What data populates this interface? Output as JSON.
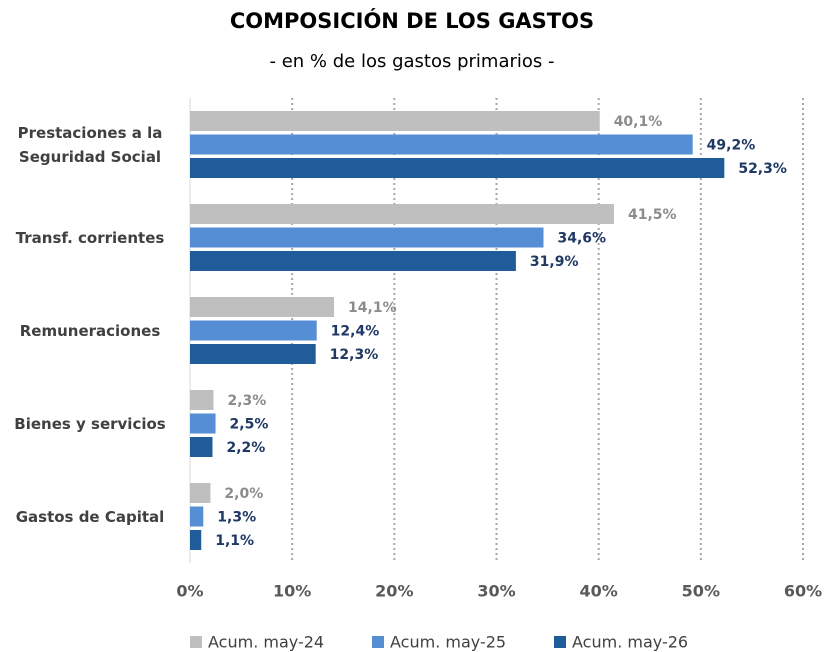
{
  "chart_data": {
    "type": "barh",
    "title": "COMPOSICIÓN DE LOS GASTOS",
    "subtitle": "- en % de los gastos primarios -",
    "categories": [
      "Prestaciones a la Seguridad Social",
      "Transf. corrientes",
      "Remuneraciones",
      "Bienes y servicios",
      "Gastos de Capital"
    ],
    "series": [
      {
        "name": "Acum. may-24",
        "color": "#bfbfbf",
        "label_color": "#8c8c8c",
        "values": [
          40.1,
          41.5,
          14.1,
          2.3,
          2.0
        ],
        "value_labels": [
          "40,1%",
          "41,5%",
          "14,1%",
          "2,3%",
          "2,0%"
        ]
      },
      {
        "name": "Acum. may-25",
        "color": "#558ed5",
        "label_color": "#1f3864",
        "values": [
          49.2,
          34.6,
          12.4,
          2.5,
          1.3
        ],
        "value_labels": [
          "49,2%",
          "34,6%",
          "12,4%",
          "2,5%",
          "1,3%"
        ]
      },
      {
        "name": "Acum. may-26",
        "color": "#1f5c99",
        "label_color": "#1f3864",
        "values": [
          52.3,
          31.9,
          12.3,
          2.2,
          1.1
        ],
        "value_labels": [
          "52,3%",
          "31,9%",
          "12,3%",
          "2,2%",
          "1,1%"
        ]
      }
    ],
    "xlim": [
      0,
      60
    ],
    "xticks": [
      {
        "value": 0,
        "label": "0%"
      },
      {
        "value": 10,
        "label": "10%"
      },
      {
        "value": 20,
        "label": "20%"
      },
      {
        "value": 30,
        "label": "30%"
      },
      {
        "value": 40,
        "label": "40%"
      },
      {
        "value": 50,
        "label": "50%"
      },
      {
        "value": 60,
        "label": "60%"
      }
    ],
    "grid": true,
    "legend": "bottom"
  }
}
